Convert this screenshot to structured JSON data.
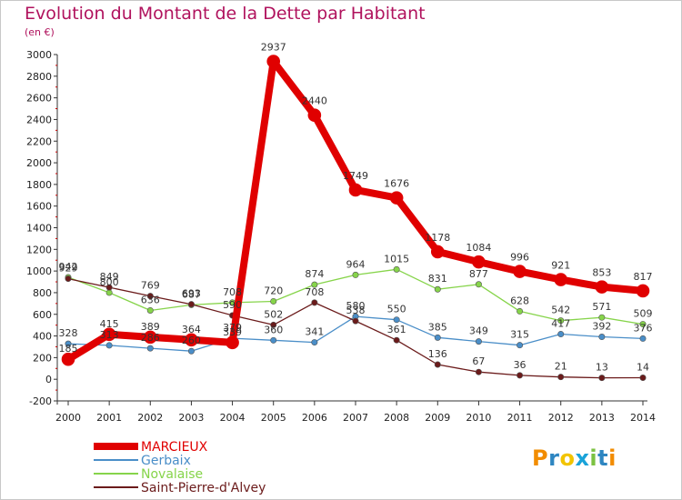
{
  "chart_data": {
    "type": "line",
    "title": "Evolution du Montant de la Dette par Habitant",
    "subtitle": "(en €)",
    "xlabel": "",
    "ylabel": "",
    "x": [
      "2000",
      "2001",
      "2002",
      "2003",
      "2004",
      "2005",
      "2006",
      "2007",
      "2008",
      "2009",
      "2010",
      "2011",
      "2012",
      "2013",
      "2014"
    ],
    "ylim": [
      -200,
      3000
    ],
    "yticks": [
      -200,
      0,
      200,
      400,
      600,
      800,
      1000,
      1200,
      1400,
      1600,
      1800,
      2000,
      2200,
      2400,
      2600,
      2800,
      3000
    ],
    "grid": false,
    "legend_position": "bottom-left",
    "series": [
      {
        "name": "MARCIEUX",
        "color": "#e00000",
        "width": 8,
        "values": [
          185,
          415,
          389,
          364,
          339,
          2937,
          2440,
          1749,
          1676,
          1178,
          1084,
          996,
          921,
          853,
          817
        ],
        "labels": [
          "185",
          "415",
          "389",
          "364",
          "339",
          "2937",
          "2440",
          "1749",
          "1676",
          "1178",
          "1084",
          "996",
          "921",
          "853",
          "817"
        ],
        "label_dy": [
          0,
          0,
          0,
          0,
          0,
          -12,
          -12,
          -12,
          -12,
          -12,
          -12,
          -12,
          -12,
          -12,
          -12
        ]
      },
      {
        "name": "Gerbaix",
        "color": "#4a8ec8",
        "width": 1.3,
        "values": [
          328,
          313,
          286,
          260,
          379,
          360,
          341,
          580,
          550,
          385,
          349,
          315,
          417,
          392,
          376
        ],
        "labels": [
          "328",
          "313",
          "286",
          "260",
          "379",
          "360",
          "341",
          "580",
          "550",
          "385",
          "349",
          "315",
          "417",
          "392",
          "376"
        ]
      },
      {
        "name": "Novalaise",
        "color": "#86d44a",
        "width": 1.3,
        "values": [
          942,
          800,
          636,
          687,
          708,
          720,
          874,
          964,
          1015,
          831,
          877,
          628,
          542,
          571,
          509
        ],
        "labels": [
          "942",
          "800",
          "636",
          "687",
          "708",
          "720",
          "874",
          "964",
          "1015",
          "831",
          "877",
          "628",
          "542",
          "571",
          "509"
        ]
      },
      {
        "name": "Saint-Pierre-d'Alvey",
        "color": "#6b1b1b",
        "width": 1.3,
        "values": [
          929,
          849,
          769,
          693,
          590,
          502,
          708,
          538,
          361,
          136,
          67,
          36,
          21,
          13,
          14
        ],
        "labels": [
          "929",
          "849",
          "769",
          "693",
          "590",
          "502",
          "708",
          "538",
          "361",
          "136",
          "67",
          "36",
          "21",
          "13",
          "14"
        ]
      }
    ]
  },
  "legend": [
    {
      "label": "MARCIEUX",
      "color": "#e00000"
    },
    {
      "label": "Gerbaix",
      "color": "#4a8ec8"
    },
    {
      "label": "Novalaise",
      "color": "#86d44a"
    },
    {
      "label": "Saint-Pierre-d'Alvey",
      "color": "#6b1b1b"
    }
  ],
  "logo": {
    "text": "Proxiti",
    "letters": [
      "P",
      "r",
      "o",
      "x",
      "i",
      "t",
      "i"
    ],
    "colors": [
      "#f28c00",
      "#2e86c1",
      "#f2c400",
      "#1aa3d9",
      "#7cc242",
      "#2e86c1",
      "#f28c00"
    ]
  }
}
